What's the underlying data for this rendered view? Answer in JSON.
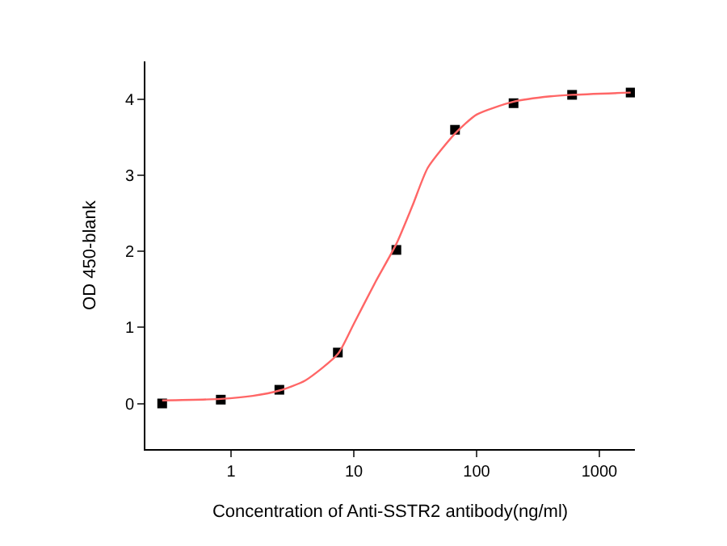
{
  "chart_data": {
    "type": "scatter",
    "xlabel": "Concentration of Anti-SSTR2 antibody(ng/ml)",
    "ylabel": "OD 450-blank",
    "log": "x",
    "xlim": [
      0.2,
      1950
    ],
    "xticks": [
      1,
      10,
      100,
      1000
    ],
    "ylim": [
      -0.6,
      4.5
    ],
    "yticks": [
      0,
      1,
      2,
      3,
      4
    ],
    "series": [
      {
        "marker": "square",
        "color": "#000000",
        "x": [
          0.274,
          0.823,
          2.47,
          7.4,
          22.2,
          66.7,
          200,
          600,
          1800
        ],
        "values": [
          0.0,
          0.05,
          0.18,
          0.67,
          2.02,
          3.6,
          3.95,
          4.06,
          4.09
        ]
      },
      {
        "type": "line",
        "marker": "none",
        "color": "#ff6666",
        "x": [
          0.274,
          0.823,
          1.5,
          2.47,
          4,
          7.4,
          10,
          15,
          22.2,
          30,
          40,
          66.7,
          100,
          200,
          400,
          600,
          1800
        ],
        "values": [
          0.04,
          0.06,
          0.1,
          0.17,
          0.3,
          0.65,
          1.05,
          1.6,
          2.1,
          2.6,
          3.1,
          3.55,
          3.8,
          3.97,
          4.04,
          4.06,
          4.09
        ]
      }
    ]
  }
}
